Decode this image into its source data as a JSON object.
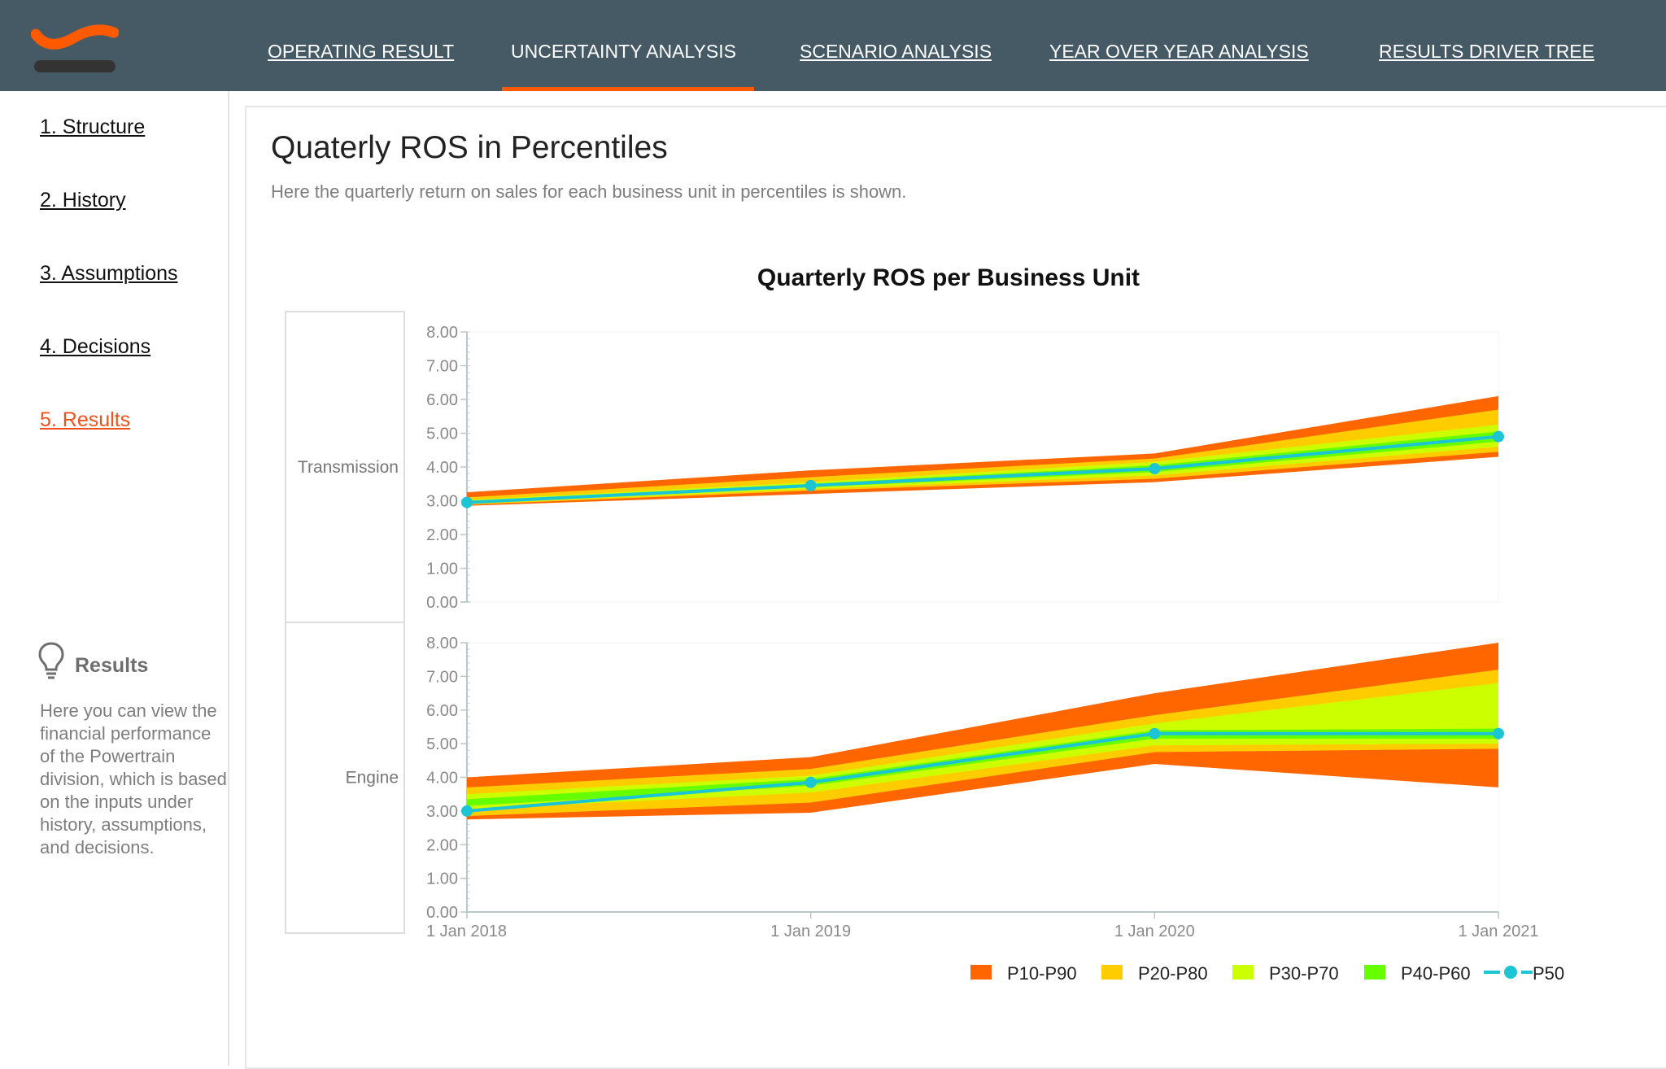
{
  "nav": {
    "tabs": [
      {
        "label": "OPERATING RESULT"
      },
      {
        "label": "UNCERTAINTY ANALYSIS",
        "active": true
      },
      {
        "label": "SCENARIO ANALYSIS"
      },
      {
        "label": "YEAR OVER YEAR ANALYSIS"
      },
      {
        "label": "RESULTS DRIVER TREE"
      }
    ]
  },
  "sidebar": {
    "items": [
      {
        "label": "1. Structure"
      },
      {
        "label": "2. History"
      },
      {
        "label": "3. Assumptions"
      },
      {
        "label": "4. Decisions"
      },
      {
        "label": "5. Results",
        "active": true
      }
    ],
    "help": {
      "icon": "lightbulb-icon",
      "title": "Results",
      "text": "Here you can view the financial performance of the Powertrain division, which is based on the inputs under history, assumptions, and decisions."
    }
  },
  "page": {
    "title": "Quaterly ROS in Percentiles",
    "subtitle": "Here the quarterly return on sales for each business unit in percentiles is shown."
  },
  "colors": {
    "header_bg": "#455a64",
    "accent": "#ff5a00",
    "active_link": "#f0521c",
    "band_p10_p90": "#ff6600",
    "band_p20_p80": "#ffcc00",
    "band_p30_p70": "#ccff00",
    "band_p40_p60": "#66ff00",
    "p50_line": "#1bc5d3"
  },
  "chart_data": {
    "type": "area",
    "title": "Quarterly ROS per Business Unit",
    "x": [
      "1 Jan 2018",
      "1 Jan 2019",
      "1 Jan 2020",
      "1 Jan 2021"
    ],
    "ylim": [
      0,
      8
    ],
    "yticks": [
      "0.00",
      "1.00",
      "2.00",
      "3.00",
      "4.00",
      "5.00",
      "6.00",
      "7.00",
      "8.00"
    ],
    "legend_position": "bottom-right",
    "legend": [
      "P10-P90",
      "P20-P80",
      "P30-P70",
      "P40-P60",
      "P50"
    ],
    "panels": [
      {
        "name": "Transmission",
        "bands": {
          "p10": [
            2.85,
            3.2,
            3.55,
            4.3
          ],
          "p20": [
            2.88,
            3.3,
            3.65,
            4.45
          ],
          "p30": [
            2.9,
            3.35,
            3.75,
            4.6
          ],
          "p40": [
            2.92,
            3.4,
            3.85,
            4.75
          ],
          "p50": [
            2.95,
            3.45,
            3.95,
            4.9
          ],
          "p60": [
            2.98,
            3.5,
            4.05,
            5.05
          ],
          "p70": [
            3.02,
            3.55,
            4.15,
            5.25
          ],
          "p80": [
            3.1,
            3.7,
            4.25,
            5.7
          ],
          "p90": [
            3.25,
            3.9,
            4.4,
            6.1
          ]
        }
      },
      {
        "name": "Engine",
        "bands": {
          "p10": [
            2.75,
            2.95,
            4.4,
            3.7
          ],
          "p20": [
            2.85,
            3.25,
            4.75,
            4.85
          ],
          "p30": [
            3.05,
            3.55,
            4.95,
            5.0
          ],
          "p40": [
            3.15,
            3.75,
            5.15,
            5.15
          ],
          "p50": [
            3.0,
            3.85,
            5.3,
            5.3
          ],
          "p60": [
            3.35,
            3.95,
            5.4,
            5.45
          ],
          "p70": [
            3.5,
            4.05,
            5.6,
            6.8
          ],
          "p80": [
            3.7,
            4.25,
            5.85,
            7.2
          ],
          "p90": [
            4.0,
            4.6,
            6.5,
            8.0
          ]
        }
      }
    ]
  }
}
